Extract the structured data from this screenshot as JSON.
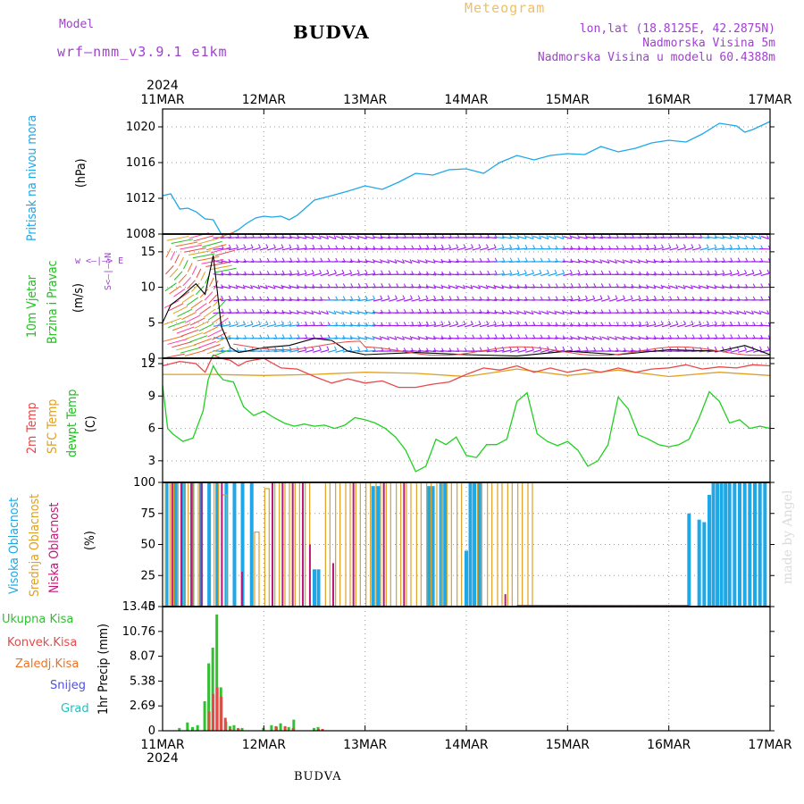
{
  "header": {
    "model_label": "Model",
    "model_name": "wrf–nmm_v3.9.1  e1km",
    "station": "BUDVA",
    "meteogram": "Meteogram",
    "coords": "lon,lat (18.8125E, 42.2875N)",
    "elevation": "Nadmorska Visina 5m",
    "model_elevation": "Nadmorska Visina u modelu 60.4388m",
    "credit": "made by Angel",
    "footer_station": "BUDVA"
  },
  "colors": {
    "pressure": "#1ea8e8",
    "wind_label": "#20c020",
    "temp2m": "#e84848",
    "sfc_temp": "#e0a020",
    "dewpt": "#20d020",
    "high_cloud": "#1ea8e8",
    "mid_cloud": "#e0a020",
    "low_cloud": "#c01878",
    "total_precip": "#30c030",
    "conv_precip": "#e84848",
    "frozen_precip": "#f07020",
    "snow": "#5050e0",
    "hail": "#20c0c0",
    "barb_purple": "#a020f0",
    "barb_blue": "#20a0f0"
  },
  "chart_data": {
    "type": "meteogram",
    "year_label": "2024",
    "dates": [
      "11MAR",
      "12MAR",
      "13MAR",
      "14MAR",
      "15MAR",
      "16MAR",
      "17MAR"
    ],
    "x_range_days": [
      0,
      6
    ],
    "panels": {
      "pressure": {
        "type": "line",
        "label": "Pritisak na nivou mora",
        "unit": "(hPa)",
        "ylim": [
          1008,
          1022
        ],
        "yticks": [
          "1008",
          "1012",
          "1016",
          "1020"
        ],
        "series": [
          {
            "name": "Pritisak na nivou mora",
            "x": [
              0,
              0.08,
              0.17,
              0.25,
              0.33,
              0.42,
              0.5,
              0.58,
              0.67,
              0.75,
              0.83,
              0.92,
              1.0,
              1.08,
              1.17,
              1.25,
              1.33,
              1.5,
              1.67,
              1.83,
              2.0,
              2.17,
              2.33,
              2.5,
              2.67,
              2.83,
              3.0,
              3.17,
              3.25,
              3.33,
              3.5,
              3.67,
              3.83,
              4.0,
              4.17,
              4.33,
              4.5,
              4.67,
              4.83,
              5.0,
              5.17,
              5.33,
              5.5,
              5.67,
              5.75,
              5.83,
              6.0
            ],
            "y": [
              1012.3,
              1012.5,
              1010.8,
              1010.9,
              1010.5,
              1009.7,
              1009.6,
              1008.0,
              1008.0,
              1008.5,
              1009.2,
              1009.8,
              1010.0,
              1009.9,
              1010.0,
              1009.6,
              1010.1,
              1011.8,
              1012.3,
              1012.8,
              1013.4,
              1013.0,
              1013.8,
              1014.8,
              1014.6,
              1015.2,
              1015.3,
              1014.8,
              1015.4,
              1016.0,
              1016.8,
              1016.3,
              1016.8,
              1017.0,
              1016.9,
              1017.8,
              1017.2,
              1017.6,
              1018.2,
              1018.5,
              1018.3,
              1019.2,
              1020.4,
              1020.1,
              1019.4,
              1019.7,
              1020.6
            ]
          }
        ]
      },
      "wind": {
        "type": "wind-barbs",
        "label_1": "10m Vjetar",
        "label_2": "Brzina i Pravac",
        "unit": "(m/s)",
        "direction_key": "w  <–|–>  E",
        "direction_key_vertical": "S<–|–>N",
        "ylim": [
          0,
          17.5
        ],
        "yticks": [
          "0",
          "5",
          "10",
          "15"
        ],
        "series": [
          {
            "name": "10m Vjetar",
            "x": [
              0,
              0.08,
              0.17,
              0.25,
              0.33,
              0.42,
              0.5,
              0.58,
              0.67,
              0.75,
              0.83,
              1.0,
              1.25,
              1.5,
              1.67,
              1.83,
              2.0,
              2.5,
              3.0,
              3.5,
              4.0,
              4.5,
              5.0,
              5.5,
              5.75,
              6.0
            ],
            "y": [
              5.0,
              7.5,
              8.5,
              9.5,
              10.5,
              9.0,
              14.5,
              4.5,
              1.5,
              0.8,
              1.0,
              1.5,
              1.8,
              2.8,
              2.5,
              1.0,
              0.5,
              0.8,
              0.5,
              0.3,
              1.0,
              0.5,
              1.2,
              1.0,
              1.8,
              0.5
            ]
          }
        ]
      },
      "temperature": {
        "type": "line",
        "labels": [
          "2m Temp",
          "SFC Temp",
          "dewpt Temp"
        ],
        "unit": "(C)",
        "ylim": [
          1,
          12.5
        ],
        "yticks": [
          "3",
          "6",
          "9",
          "12"
        ],
        "series": [
          {
            "name": "2m Temp",
            "x": [
              0,
              0.17,
              0.33,
              0.42,
              0.5,
              0.58,
              0.67,
              0.75,
              0.83,
              1.0,
              1.17,
              1.33,
              1.5,
              1.67,
              1.83,
              2.0,
              2.17,
              2.33,
              2.5,
              2.67,
              2.83,
              3.0,
              3.17,
              3.33,
              3.5,
              3.67,
              3.83,
              4.0,
              4.17,
              4.33,
              4.5,
              4.67,
              4.83,
              5.0,
              5.17,
              5.33,
              5.5,
              5.67,
              5.83,
              6.0
            ],
            "y": [
              11.8,
              12.2,
              12.0,
              11.2,
              12.8,
              12.5,
              12.3,
              11.8,
              12.2,
              12.5,
              11.6,
              11.5,
              10.8,
              10.2,
              10.6,
              10.2,
              10.4,
              9.8,
              9.8,
              10.1,
              10.3,
              11.0,
              11.6,
              11.4,
              11.8,
              11.2,
              11.6,
              11.2,
              11.5,
              11.2,
              11.6,
              11.2,
              11.5,
              11.6,
              11.9,
              11.5,
              11.7,
              11.6,
              11.9,
              11.8
            ]
          },
          {
            "name": "SFC Temp",
            "x": [
              0,
              0.5,
              1.0,
              1.5,
              2.0,
              2.5,
              3.0,
              3.5,
              4.0,
              4.5,
              5.0,
              5.5,
              6.0
            ],
            "y": [
              11.0,
              11.0,
              10.9,
              11.0,
              11.2,
              11.1,
              10.8,
              11.5,
              10.9,
              11.4,
              10.8,
              11.2,
              10.9
            ]
          },
          {
            "name": "dewpt Temp",
            "x": [
              0,
              0.05,
              0.1,
              0.2,
              0.3,
              0.4,
              0.45,
              0.5,
              0.55,
              0.6,
              0.7,
              0.8,
              0.9,
              1.0,
              1.1,
              1.2,
              1.3,
              1.4,
              1.5,
              1.6,
              1.7,
              1.8,
              1.9,
              2.0,
              2.1,
              2.2,
              2.3,
              2.4,
              2.5,
              2.6,
              2.7,
              2.8,
              2.9,
              3.0,
              3.1,
              3.2,
              3.3,
              3.4,
              3.5,
              3.6,
              3.7,
              3.8,
              3.9,
              4.0,
              4.1,
              4.2,
              4.3,
              4.4,
              4.5,
              4.6,
              4.7,
              4.8,
              4.9,
              5.0,
              5.1,
              5.2,
              5.3,
              5.4,
              5.5,
              5.6,
              5.7,
              5.8,
              5.9,
              6.0
            ],
            "y": [
              10.0,
              6.0,
              5.5,
              4.8,
              5.1,
              7.6,
              10.5,
              11.8,
              11.0,
              10.5,
              10.3,
              8.0,
              7.2,
              7.6,
              7.0,
              6.5,
              6.2,
              6.4,
              6.2,
              6.3,
              6.0,
              6.3,
              7.0,
              6.8,
              6.5,
              6.0,
              5.2,
              4.0,
              2.0,
              2.5,
              5.0,
              4.5,
              5.2,
              3.5,
              3.3,
              4.5,
              4.5,
              5.0,
              8.5,
              9.3,
              5.5,
              4.8,
              4.4,
              4.8,
              4.0,
              2.5,
              3.0,
              4.5,
              8.9,
              7.8,
              5.4,
              5.0,
              4.5,
              4.3,
              4.5,
              5.0,
              7.0,
              9.4,
              8.5,
              6.5,
              6.8,
              6.0,
              6.2,
              6.0
            ]
          }
        ]
      },
      "cloud": {
        "type": "bar",
        "labels": [
          "Visoka Oblacnost",
          "Srednja Oblacnost",
          "Niska Oblacnost"
        ],
        "unit": "(%)",
        "ylim": [
          0,
          100
        ],
        "yticks": [
          "0",
          "25",
          "50",
          "75",
          "100"
        ],
        "series": [
          {
            "name": "Visoka Oblacnost",
            "x": [
              0.04,
              0.13,
              0.21,
              0.29,
              0.38,
              0.46,
              0.54,
              0.63,
              0.71,
              0.79,
              0.88,
              1.5,
              1.54,
              2.08,
              2.13,
              2.63,
              2.67,
              2.75,
              2.79,
              3.0,
              3.04,
              3.08,
              3.13,
              5.2,
              5.3,
              5.35,
              5.4,
              5.44,
              5.48,
              5.52,
              5.56,
              5.6,
              5.65,
              5.7,
              5.75,
              5.8,
              5.85,
              5.9,
              5.95
            ],
            "values": [
              100,
              100,
              100,
              100,
              100,
              100,
              100,
              100,
              100,
              100,
              100,
              30,
              30,
              97,
              97,
              97,
              97,
              100,
              100,
              45,
              100,
              100,
              100,
              75,
              70,
              68,
              90,
              100,
              100,
              100,
              100,
              100,
              100,
              100,
              100,
              100,
              100,
              100,
              100
            ]
          },
          {
            "name": "Srednja Oblacnost",
            "x": [
              0.02,
              0.1,
              0.2,
              0.3,
              0.5,
              0.58,
              0.9,
              1.0,
              1.1,
              1.2,
              1.3,
              1.4,
              1.6,
              1.7,
              1.8,
              1.9,
              2.0,
              2.1,
              2.2,
              2.3,
              2.4,
              2.5,
              2.6,
              2.7,
              2.8,
              2.9,
              3.1,
              3.2,
              3.3,
              3.4,
              3.5,
              3.6
            ],
            "values": [
              100,
              100,
              100,
              100,
              100,
              90,
              60,
              95,
              100,
              100,
              100,
              100,
              100,
              100,
              100,
              100,
              100,
              100,
              100,
              100,
              100,
              100,
              100,
              100,
              100,
              100,
              100,
              100,
              100,
              100,
              100,
              100
            ]
          },
          {
            "name": "Niska Oblacnost",
            "x": [
              0.06,
              0.15,
              0.25,
              0.35,
              0.55,
              0.75,
              1.05,
              1.15,
              1.25,
              1.35,
              1.42,
              1.65,
              1.85,
              2.15,
              2.35,
              3.35
            ],
            "values": [
              100,
              100,
              100,
              100,
              100,
              28,
              100,
              100,
              100,
              100,
              50,
              35,
              100,
              100,
              100,
              10
            ]
          }
        ]
      },
      "precip": {
        "type": "bar",
        "labels": [
          "Ukupna Kisa",
          "Konvek.Kisa",
          "Zaledj.Kisa",
          "Snijeg",
          "Grad"
        ],
        "unit": "1hr Precip (mm)",
        "ylim": [
          0,
          13.45
        ],
        "yticks": [
          "0",
          "2.69",
          "5.38",
          "8.07",
          "10.76",
          "13.45"
        ],
        "series": [
          {
            "name": "Ukupna Kisa",
            "x": [
              0.17,
              0.25,
              0.3,
              0.35,
              0.42,
              0.46,
              0.5,
              0.54,
              0.58,
              0.63,
              0.67,
              0.71,
              0.75,
              0.79,
              1.0,
              1.08,
              1.13,
              1.17,
              1.25,
              1.3,
              1.5,
              1.54
            ],
            "values": [
              0.3,
              0.9,
              0.4,
              0.6,
              3.2,
              7.3,
              9.0,
              12.6,
              4.7,
              1.0,
              0.5,
              0.6,
              0.3,
              0.3,
              0.3,
              0.6,
              0.4,
              0.8,
              0.4,
              1.2,
              0.3,
              0.4
            ]
          },
          {
            "name": "Konvek.Kisa",
            "x": [
              0.42,
              0.46,
              0.5,
              0.54,
              0.58,
              0.63,
              0.71,
              1.08,
              1.17,
              1.25,
              1.5,
              1.54
            ],
            "values": [
              2.1,
              4.0,
              4.7,
              3.7,
              1.4,
              0.2,
              0.2,
              0.5,
              0.5,
              0.3,
              0.2,
              0.2
            ]
          }
        ]
      }
    }
  }
}
